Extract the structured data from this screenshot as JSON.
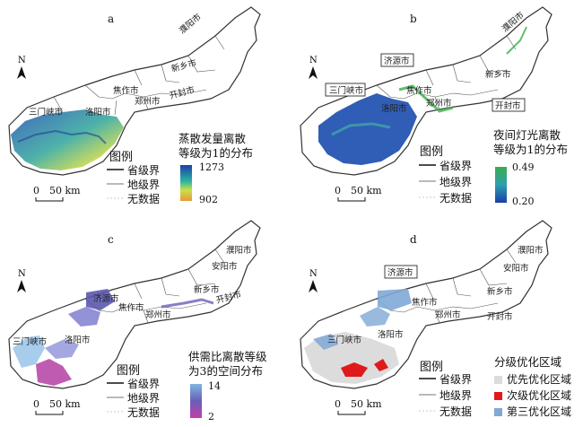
{
  "panels": [
    {
      "letter": "a",
      "cities": [
        "濮阳市",
        "新乡市",
        "焦作市",
        "郑州市",
        "开封市",
        "三门峡市",
        "洛阳市"
      ],
      "legend_title": "图例",
      "legend_items": [
        "省级界",
        "地级界",
        "无数据"
      ],
      "colorbar_title": [
        "蒸散发量离散",
        "等级为1的分布"
      ],
      "colorbar_max": "1273",
      "colorbar_min": "902",
      "scale_zero": "0",
      "scale_label": "50 km",
      "north": "N"
    },
    {
      "letter": "b",
      "cities": [
        "济源市",
        "濮阳市",
        "新乡市",
        "焦作市",
        "郑州市",
        "洛阳市"
      ],
      "boxed_cities": [
        "济源市",
        "三门峡市",
        "开封市"
      ],
      "legend_title": "图例",
      "legend_items": [
        "省级界",
        "地级界",
        "无数据"
      ],
      "colorbar_title": [
        "夜间灯光离散",
        "等级为1的分布"
      ],
      "colorbar_max": "0.49",
      "colorbar_min": "0.20",
      "scale_zero": "0",
      "scale_label": "50 km",
      "north": "N"
    },
    {
      "letter": "c",
      "cities": [
        "濮阳市",
        "安阳市",
        "济源市",
        "新乡市",
        "焦作市",
        "郑州市",
        "开封市",
        "三门峡市",
        "洛阳市"
      ],
      "legend_title": "图例",
      "legend_items": [
        "省级界",
        "地级界",
        "无数据"
      ],
      "colorbar_title": [
        "供需比离散等级",
        "为3的空间分布"
      ],
      "colorbar_max": "14",
      "colorbar_min": "2",
      "scale_zero": "0",
      "scale_label": "50 km",
      "north": "N"
    },
    {
      "letter": "d",
      "cities": [
        "濮阳市",
        "安阳市",
        "新乡市",
        "焦作市",
        "郑州市",
        "开封市",
        "三门峡市",
        "洛阳市"
      ],
      "boxed_cities": [
        "济源市"
      ],
      "legend_title": "图例",
      "legend_items": [
        "省级界",
        "地级界",
        "无数据"
      ],
      "category_title": "分级优化区域",
      "categories": [
        {
          "label": "优先优化区域",
          "color": "#dcdcdc"
        },
        {
          "label": "次级优化区域",
          "color": "#e0191b"
        },
        {
          "label": "第三优化区域",
          "color": "#7fa8d6"
        }
      ],
      "scale_zero": "0",
      "scale_label": "50 km",
      "north": "N"
    }
  ]
}
